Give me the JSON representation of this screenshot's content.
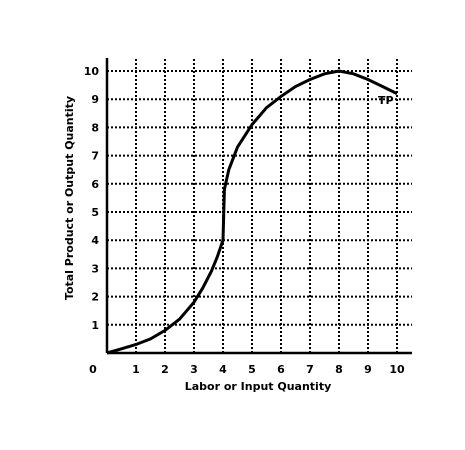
{
  "chart_data": {
    "type": "line",
    "xlabel": "Labor or Input Quantity",
    "ylabel": "Total Product or Output Quantity",
    "xlim": [
      0,
      10
    ],
    "ylim": [
      0,
      10
    ],
    "x_ticks": [
      "0",
      "1",
      "2",
      "3",
      "4",
      "5",
      "6",
      "7",
      "8",
      "9",
      "10"
    ],
    "y_ticks": [
      "1",
      "2",
      "3",
      "4",
      "5",
      "6",
      "7",
      "8",
      "9",
      "10"
    ],
    "grid": true,
    "curve_label": "TP",
    "series": [
      {
        "x": [
          0,
          0.5,
          1,
          1.5,
          2,
          2.5,
          3,
          3.3,
          3.6,
          3.8,
          4,
          4.05,
          4.2,
          4.5,
          5,
          5.5,
          6,
          6.5,
          7,
          7.5,
          8,
          8.5,
          9,
          9.5,
          10
        ],
        "y": [
          0,
          0.15,
          0.3,
          0.5,
          0.8,
          1.2,
          1.8,
          2.3,
          2.9,
          3.4,
          4,
          5.8,
          6.5,
          7.3,
          8.1,
          8.7,
          9.1,
          9.45,
          9.7,
          9.9,
          10,
          9.9,
          9.7,
          9.45,
          9.2
        ]
      }
    ]
  }
}
